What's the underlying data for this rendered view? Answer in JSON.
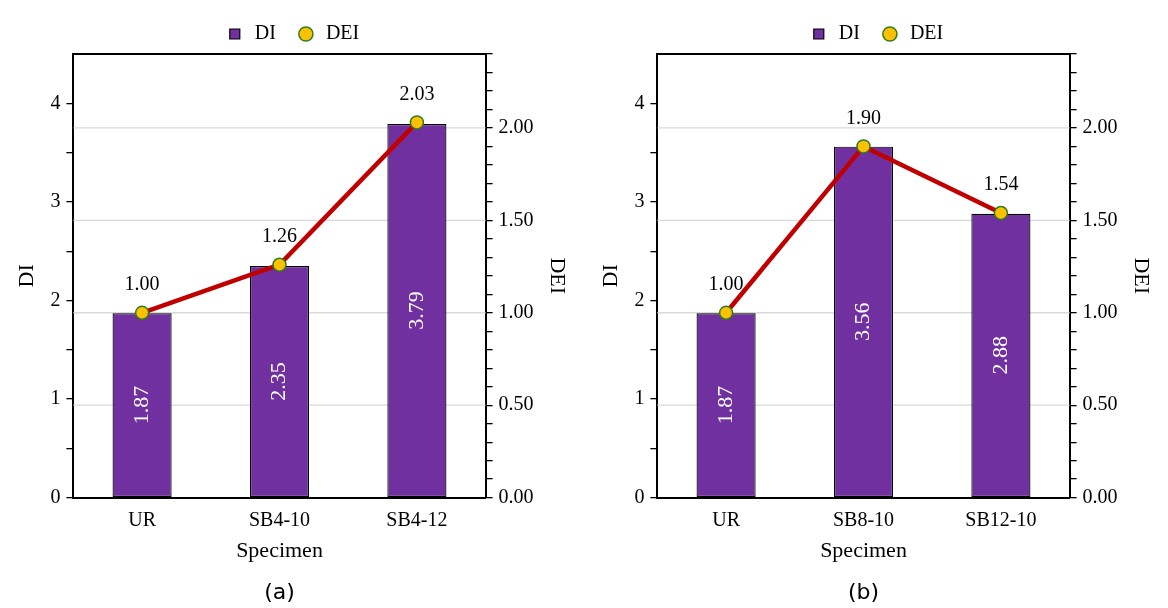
{
  "chart_data": [
    {
      "type": "bar",
      "categories": [
        "UR",
        "SB4-10",
        "SB4-12"
      ],
      "xlabel": "Specimen",
      "ylabel": "DI",
      "y2label": "DEI",
      "series": [
        {
          "name": "DI",
          "color": "#7030a0",
          "values": [
            1.87,
            2.35,
            3.79
          ],
          "value_labels": [
            "1.87",
            "2.35",
            "3.79"
          ]
        },
        {
          "name": "DEI",
          "type": "line",
          "axis": "y2",
          "color": "#c00000",
          "values": [
            1.0,
            1.26,
            2.03
          ],
          "value_labels": [
            "1.00",
            "1.26",
            "2.03"
          ]
        }
      ],
      "ylim": [
        0,
        4.5
      ],
      "yticks": [
        0,
        {
          "value": 0.5,
          "label": null
        },
        1,
        {
          "value": 1.5,
          "label": null
        },
        2,
        {
          "value": 2.5,
          "label": null
        },
        3,
        {
          "value": 3.5,
          "label": null
        },
        4
      ],
      "y2lim": [
        0,
        2.4
      ],
      "y2ticks": [
        {
          "value": 0,
          "label": "0.00"
        },
        {
          "value": 0.1,
          "label": null
        },
        {
          "value": 0.2,
          "label": null
        },
        {
          "value": 0.3,
          "label": null
        },
        {
          "value": 0.4,
          "label": null
        },
        {
          "value": 0.5,
          "label": "0.50"
        },
        {
          "value": 0.6,
          "label": null
        },
        {
          "value": 0.7,
          "label": null
        },
        {
          "value": 0.8,
          "label": null
        },
        {
          "value": 0.9,
          "label": null
        },
        {
          "value": 1.0,
          "label": "1.00"
        },
        {
          "value": 1.1,
          "label": null
        },
        {
          "value": 1.2,
          "label": null
        },
        {
          "value": 1.3,
          "label": null
        },
        {
          "value": 1.4,
          "label": null
        },
        {
          "value": 1.5,
          "label": "1.50"
        },
        {
          "value": 1.6,
          "label": null
        },
        {
          "value": 1.7,
          "label": null
        },
        {
          "value": 1.8,
          "label": null
        },
        {
          "value": 1.9,
          "label": null
        },
        {
          "value": 2.0,
          "label": "2.00"
        },
        {
          "value": 2.1,
          "label": null
        },
        {
          "value": 2.2,
          "label": null
        },
        {
          "value": 2.3,
          "label": null
        },
        {
          "value": 2.4,
          "label": null
        }
      ],
      "legend": "top",
      "grid": "y2",
      "marker": "circle",
      "annotations": [
        "(a)"
      ]
    },
    {
      "type": "bar",
      "categories": [
        "UR",
        "SB8-10",
        "SB12-10"
      ],
      "xlabel": "Specimen",
      "ylabel": "DI",
      "y2label": "DEI",
      "series": [
        {
          "name": "DI",
          "color": "#7030a0",
          "values": [
            1.87,
            3.56,
            2.88
          ],
          "value_labels": [
            "1.87",
            "3.56",
            "2.88"
          ]
        },
        {
          "name": "DEI",
          "type": "line",
          "axis": "y2",
          "color": "#c00000",
          "values": [
            1.0,
            1.9,
            1.54
          ],
          "value_labels": [
            "1.00",
            "1.90",
            "1.54"
          ]
        }
      ],
      "ylim": [
        0,
        4.5
      ],
      "yticks": [
        0,
        {
          "value": 0.5,
          "label": null
        },
        1,
        {
          "value": 1.5,
          "label": null
        },
        2,
        {
          "value": 2.5,
          "label": null
        },
        3,
        {
          "value": 3.5,
          "label": null
        },
        4
      ],
      "y2lim": [
        0,
        2.4
      ],
      "y2ticks": [
        {
          "value": 0,
          "label": "0.00"
        },
        {
          "value": 0.1,
          "label": null
        },
        {
          "value": 0.2,
          "label": null
        },
        {
          "value": 0.3,
          "label": null
        },
        {
          "value": 0.4,
          "label": null
        },
        {
          "value": 0.5,
          "label": "0.50"
        },
        {
          "value": 0.6,
          "label": null
        },
        {
          "value": 0.7,
          "label": null
        },
        {
          "value": 0.8,
          "label": null
        },
        {
          "value": 0.9,
          "label": null
        },
        {
          "value": 1.0,
          "label": "1.00"
        },
        {
          "value": 1.1,
          "label": null
        },
        {
          "value": 1.2,
          "label": null
        },
        {
          "value": 1.3,
          "label": null
        },
        {
          "value": 1.4,
          "label": null
        },
        {
          "value": 1.5,
          "label": "1.50"
        },
        {
          "value": 1.6,
          "label": null
        },
        {
          "value": 1.7,
          "label": null
        },
        {
          "value": 1.8,
          "label": null
        },
        {
          "value": 1.9,
          "label": null
        },
        {
          "value": 2.0,
          "label": "2.00"
        },
        {
          "value": 2.1,
          "label": null
        },
        {
          "value": 2.2,
          "label": null
        },
        {
          "value": 2.3,
          "label": null
        },
        {
          "value": 2.4,
          "label": null
        }
      ],
      "legend": "top",
      "grid": "y2",
      "marker": "circle",
      "annotations": [
        "(b)"
      ]
    }
  ]
}
